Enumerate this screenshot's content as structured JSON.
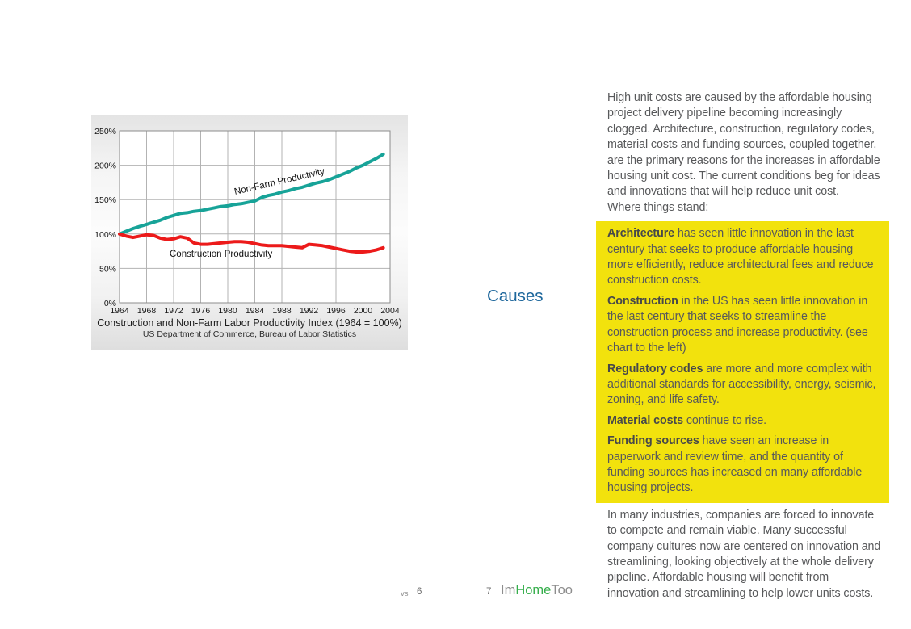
{
  "chart": {
    "title": "Construction and Non-Farm Labor Productivity Index  (1964 = 100%)",
    "subtitle": "US Department of Commerce, Bureau of Labor Statistics",
    "chart_data": {
      "type": "line",
      "title": "Construction and Non-Farm Labor Productivity Index  (1964 = 100%)",
      "source": "US Department of Commerce, Bureau of Labor Statistics",
      "xlim": [
        1964,
        2004
      ],
      "ylim": [
        0,
        250
      ],
      "xticks": [
        1964,
        1968,
        1972,
        1976,
        1980,
        1984,
        1988,
        1992,
        1996,
        2000,
        2004
      ],
      "yticks": [
        0,
        50,
        100,
        150,
        200,
        250
      ],
      "ytick_suffix": "%",
      "grid": true,
      "x": [
        1964,
        1965,
        1966,
        1967,
        1968,
        1969,
        1970,
        1971,
        1972,
        1973,
        1974,
        1975,
        1976,
        1977,
        1978,
        1979,
        1980,
        1981,
        1982,
        1983,
        1984,
        1985,
        1986,
        1987,
        1988,
        1989,
        1990,
        1991,
        1992,
        1993,
        1994,
        1995,
        1996,
        1997,
        1998,
        1999,
        2000,
        2001,
        2002,
        2003
      ],
      "series": [
        {
          "name": "Non-Farm Productivity",
          "color": "#17a398",
          "values": [
            100,
            104,
            108,
            111,
            114,
            117,
            120,
            124,
            127,
            130,
            131,
            133,
            134,
            136,
            138,
            140,
            141,
            143,
            144,
            146,
            148,
            153,
            156,
            158,
            161,
            163,
            166,
            168,
            171,
            174,
            176,
            179,
            183,
            187,
            191,
            196,
            200,
            205,
            210,
            216
          ]
        },
        {
          "name": "Construction Productivity",
          "color": "#ec1a1a",
          "values": [
            100,
            97,
            95,
            97,
            99,
            98,
            94,
            92,
            93,
            96,
            94,
            87,
            85,
            85,
            86,
            87,
            88,
            89,
            89,
            88,
            86,
            84,
            83,
            83,
            83,
            82,
            81,
            80,
            85,
            84,
            83,
            81,
            79,
            77,
            75,
            74,
            74,
            75,
            77,
            80
          ]
        }
      ]
    }
  },
  "causes_label": "Causes",
  "right_column": {
    "intro": "High unit costs are caused by the affordable housing project delivery pipeline becoming increasingly clogged. Architecture, construction, regulatory codes, material costs and funding sources, coupled together, are the primary reasons for the increases in affordable housing unit cost. The current conditions beg for ideas and innovations that will help reduce unit cost.",
    "intro_closing": "Where things stand:",
    "highlight_items": [
      {
        "lead": "Architecture",
        "text": " has seen little innovation in the last century that seeks to produce affordable housing more efficiently, reduce architectural fees and reduce construction costs."
      },
      {
        "lead": "Construction",
        "text": " in the US has seen little innovation in the last century that seeks to streamline the construction process and increase productivity. (see chart to the left)"
      },
      {
        "lead": "Regulatory codes",
        "text": " are more and more complex with additional standards for accessibility, energy, seismic, zoning, and life safety."
      },
      {
        "lead": "Material costs",
        "text": " continue to rise."
      },
      {
        "lead": "Funding sources",
        "text": " have seen an increase in paperwork and review time, and the quantity of funding sources has increased on many affordable housing projects."
      }
    ],
    "outro": "In many industries, companies are forced to innovate to compete and remain viable. Many successful company cultures now are centered on innovation and streamlining, looking objectively at the whole delivery pipeline. Affordable housing will benefit from innovation and streamlining to help lower units costs."
  },
  "footer": {
    "vs_label": "vs",
    "left_page_number": "6",
    "right_page_number": "7",
    "brand_prefix": "Im",
    "brand_highlight": "Home",
    "brand_suffix": "Too"
  },
  "colors": {
    "highlight_yellow": "#f2e20d",
    "causes_blue": "#1e679c",
    "brand_green": "#35ae4b",
    "body_gray": "#58595b",
    "chart_teal": "#17a398",
    "chart_red": "#ec1a1a"
  }
}
